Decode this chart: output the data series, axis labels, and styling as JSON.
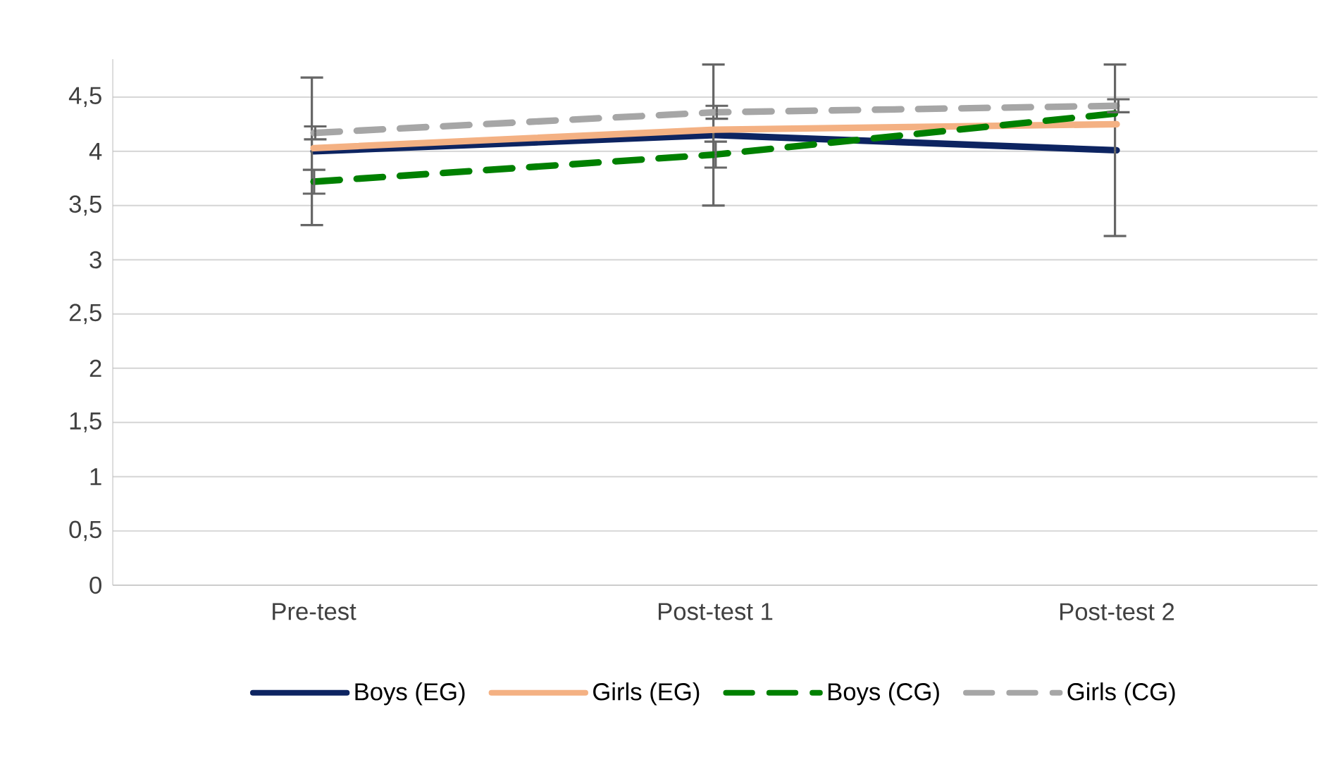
{
  "chart_data": {
    "type": "line",
    "categories": [
      "Pre-test",
      "Post-test 1",
      "Post-test 2"
    ],
    "series": [
      {
        "name": "Boys (EG)",
        "color": "#0d2461",
        "values": [
          4.0,
          4.15,
          4.01
        ],
        "errors": [
          0.68,
          0.65,
          0.79
        ],
        "line_style": "solid"
      },
      {
        "name": "Girls (EG)",
        "color": "#f4b183",
        "values": [
          4.03,
          4.2,
          4.25
        ],
        "line_style": "solid"
      },
      {
        "name": "Boys (CG)",
        "color": "#008000",
        "values": [
          3.72,
          3.97,
          4.35
        ],
        "errors": [
          0.11,
          0.12,
          null
        ],
        "line_style": "dashed"
      },
      {
        "name": "Girls (CG)",
        "color": "#a6a6a6",
        "values": [
          4.17,
          4.36,
          4.42
        ],
        "errors": [
          0.06,
          0.06,
          0.06
        ],
        "line_style": "dashed"
      }
    ],
    "ylim": [
      0,
      4.85
    ],
    "yticks": [
      0,
      {
        "value": 0.5,
        "label": "0,5"
      },
      1,
      {
        "value": 1.5,
        "label": "1,5"
      },
      2,
      {
        "value": 2.5,
        "label": "2,5"
      },
      3,
      {
        "value": 3.5,
        "label": "3,5"
      },
      4,
      {
        "value": 4.5,
        "label": "4,5"
      }
    ],
    "grid": "y",
    "legend": "bottom",
    "marker": "none"
  }
}
